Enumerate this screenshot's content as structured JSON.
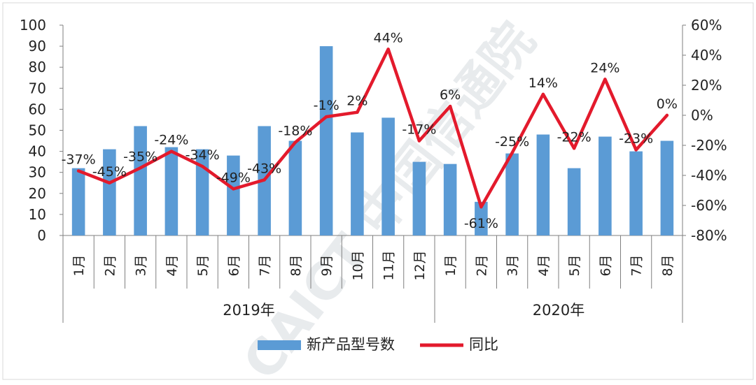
{
  "chart_data": {
    "type": "bar",
    "years": [
      "2019年",
      "2020年"
    ],
    "categories": [
      "1月",
      "2月",
      "3月",
      "4月",
      "5月",
      "6月",
      "7月",
      "8月",
      "9月",
      "10月",
      "11月",
      "12月",
      "1月",
      "2月",
      "3月",
      "4月",
      "5月",
      "6月",
      "7月",
      "8月"
    ],
    "category_year_index": [
      0,
      0,
      0,
      0,
      0,
      0,
      0,
      0,
      0,
      0,
      0,
      0,
      1,
      1,
      1,
      1,
      1,
      1,
      1,
      1
    ],
    "series": [
      {
        "name": "新产品型号数",
        "type": "bar",
        "axis": "left",
        "color": "#5b9bd5",
        "values": [
          32,
          41,
          52,
          42,
          41,
          38,
          52,
          45,
          90,
          49,
          56,
          35,
          34,
          16,
          39,
          48,
          32,
          47,
          40,
          45
        ]
      },
      {
        "name": "同比",
        "type": "line",
        "axis": "right",
        "color": "#e31a2c",
        "values": [
          -37,
          -45,
          -35,
          -24,
          -34,
          -49,
          -43,
          -18,
          -1,
          2,
          44,
          -17,
          6,
          -61,
          -25,
          14,
          -22,
          24,
          -23,
          0
        ],
        "labels": [
          "-37%",
          "-45%",
          "-35%",
          "-24%",
          "-34%",
          "-49%",
          "-43%",
          "-18%",
          "-1%",
          "2%",
          "44%",
          "-17%",
          "6%",
          "-61%",
          "-25%",
          "14%",
          "-22%",
          "24%",
          "-23%",
          "0%"
        ]
      }
    ],
    "y_left": {
      "min": 0,
      "max": 100,
      "step": 10
    },
    "y_right": {
      "min": -80,
      "max": 60,
      "step": 20,
      "unit": "%"
    },
    "grid": false,
    "legend_position": "bottom",
    "watermark": "CAICT 中国信通院"
  }
}
